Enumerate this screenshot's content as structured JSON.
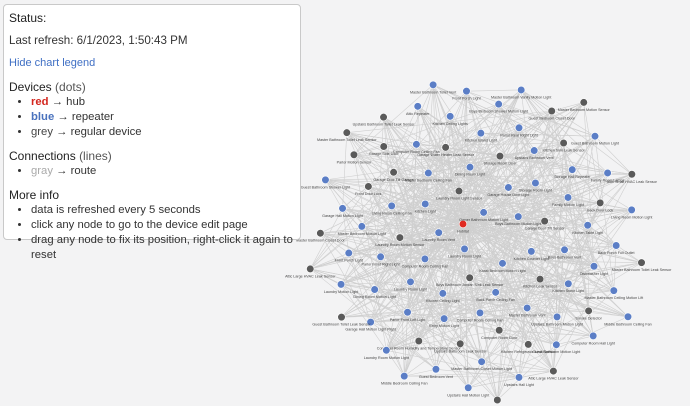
{
  "legend": {
    "status_label": "Status:",
    "last_refresh": "Last refresh: 6/1/2023, 1:50:43 PM",
    "toggle_label": "Hide chart legend",
    "devices": {
      "title": "Devices",
      "note": "(dots)",
      "items": [
        {
          "color_word": "red",
          "arrow": "→",
          "desc": "hub",
          "color": "#d4261e"
        },
        {
          "color_word": "blue",
          "arrow": "→",
          "desc": "repeater",
          "color": "#4a72bd"
        },
        {
          "color_word": "grey",
          "arrow": "→",
          "desc": "regular device",
          "color": "#444444"
        }
      ]
    },
    "connections": {
      "title": "Connections",
      "note": "(lines)",
      "items": [
        {
          "color_word": "gray",
          "arrow": "→",
          "desc": "route",
          "color": "#aaaaaa"
        }
      ]
    },
    "more_info": {
      "title": "More info",
      "items": [
        "data is refreshed every 5 seconds",
        "click any node to go to the device edit page",
        "drag any node to fix its position, right-click it again to reset"
      ]
    }
  },
  "colors": {
    "hub": "#e02b22",
    "repeater": "#5b7ec6",
    "regular": "#5a5a5a",
    "edge": "#cfcfcf"
  },
  "graph": {
    "nodes": [
      {
        "label": "Hubitat",
        "type": "hub"
      },
      {
        "label": "Laundry Room Light",
        "type": "repeater"
      },
      {
        "label": "Owner Bathroom Motion Light",
        "type": "repeater"
      },
      {
        "label": "Kasst Bedroom Motion Light",
        "type": "repeater"
      },
      {
        "label": "Laundry Room Vent",
        "type": "repeater"
      },
      {
        "label": "Boys Bathroom Motion Light",
        "type": "repeater"
      },
      {
        "label": "Boys Bathroom Jordan Sink Leak Sensor",
        "type": "regular"
      },
      {
        "label": "Laundry Room Light Sensor",
        "type": "regular"
      },
      {
        "label": "Kitchen Counter Light",
        "type": "repeater"
      },
      {
        "label": "Computer Room Ceiling Fan",
        "type": "repeater"
      },
      {
        "label": "Garage House Door Light",
        "type": "repeater"
      },
      {
        "label": "Back Porch Ceiling Fan",
        "type": "repeater"
      },
      {
        "label": "Kitchen Light",
        "type": "repeater"
      },
      {
        "label": "Garage Door Tilt Sensor",
        "type": "regular"
      },
      {
        "label": "Kitchen Ceiling Light",
        "type": "repeater"
      },
      {
        "label": "Dining Room Light",
        "type": "repeater"
      },
      {
        "label": "Kitchen Leak Sensor",
        "type": "regular"
      },
      {
        "label": "Laundry Room Motion Sensor",
        "type": "regular"
      },
      {
        "label": "Storage Room Light",
        "type": "repeater"
      },
      {
        "label": "Computer Room Ceiling Fan",
        "type": "repeater"
      },
      {
        "label": "Master Bedroom Ceiling Fan",
        "type": "repeater"
      },
      {
        "label": "Boys Bathroom Vent",
        "type": "repeater"
      },
      {
        "label": "Laundry Room Light",
        "type": "repeater"
      },
      {
        "label": "Storage Room Door",
        "type": "regular"
      },
      {
        "label": "Master Bathroom Vent",
        "type": "repeater"
      },
      {
        "label": "Living Room Ceiling Fan",
        "type": "repeater"
      },
      {
        "label": "Family Motion Light",
        "type": "repeater"
      },
      {
        "label": "Entry Motion Light",
        "type": "repeater"
      },
      {
        "label": "Garage Water Heater Leak Sensor",
        "type": "regular"
      },
      {
        "label": "Kitchen Stove Light",
        "type": "repeater"
      },
      {
        "label": "Parlor Front Right Light",
        "type": "repeater"
      },
      {
        "label": "Upstairs Bathroom Vent",
        "type": "repeater"
      },
      {
        "label": "Computer Room Door",
        "type": "regular"
      },
      {
        "label": "Garage Door Tilt Garage",
        "type": "regular"
      },
      {
        "label": "Kitchen Table Light",
        "type": "repeater"
      },
      {
        "label": "Parlor Front Left Light",
        "type": "repeater"
      },
      {
        "label": "Kitchen Island Light",
        "type": "repeater"
      },
      {
        "label": "Upstairs Bathroom Motion Light",
        "type": "repeater"
      },
      {
        "label": "Master Bedroom Motion Light",
        "type": "repeater"
      },
      {
        "label": "Storage Hall Repeater",
        "type": "repeater"
      },
      {
        "label": "Upstairs Bathroom Leak Sensor",
        "type": "regular"
      },
      {
        "label": "Computer Room Ceiling Fan",
        "type": "repeater"
      },
      {
        "label": "Dishwasher Light",
        "type": "repeater"
      },
      {
        "label": "Dining Room Motion Light",
        "type": "repeater"
      },
      {
        "label": "Parlor Rear Right Light",
        "type": "repeater"
      },
      {
        "label": "Kitchen Refrigerator Leak Sensor",
        "type": "regular"
      },
      {
        "label": "Front Door Lock",
        "type": "regular"
      },
      {
        "label": "Back Door Lock",
        "type": "regular"
      },
      {
        "label": "Computer Room Humidity and Temperature Sensor",
        "type": "regular"
      },
      {
        "label": "Kitchen Ceiling Lights",
        "type": "repeater"
      },
      {
        "label": "Smoke Detector",
        "type": "regular"
      },
      {
        "label": "Front Porch Light",
        "type": "repeater"
      },
      {
        "label": "Kitchen Sink Leak Sensor",
        "type": "regular"
      },
      {
        "label": "Master Bathroom Closet Motion Light",
        "type": "repeater"
      },
      {
        "label": "Garage Side Door",
        "type": "regular"
      },
      {
        "label": "Back Porch Full Outlet",
        "type": "repeater"
      },
      {
        "label": "Garage Hall Motion Light Right",
        "type": "repeater"
      },
      {
        "label": "Boys Bedroom Shower Motion Light",
        "type": "repeater"
      },
      {
        "label": "Guest Bathroom Motion Light",
        "type": "repeater"
      },
      {
        "label": "Garage Hall Motion Light",
        "type": "repeater"
      },
      {
        "label": "Family Room Lamps",
        "type": "repeater"
      },
      {
        "label": "Guest Bedroom Vent",
        "type": "repeater"
      },
      {
        "label": "Attic Repeater",
        "type": "repeater"
      },
      {
        "label": "Master Bathroom Ceiling Motion Lift",
        "type": "repeater"
      },
      {
        "label": "Laundry Motion Light",
        "type": "repeater"
      },
      {
        "label": "Guest Bedroom Closet Door",
        "type": "regular"
      },
      {
        "label": "Upstairs Hall Light",
        "type": "repeater"
      },
      {
        "label": "Parlor Motion Sensor",
        "type": "regular"
      },
      {
        "label": "Living Room Motion Light",
        "type": "repeater"
      },
      {
        "label": "Laundry Room Motion Light",
        "type": "repeater"
      },
      {
        "label": "Front Porch Light",
        "type": "repeater"
      },
      {
        "label": "Computer Room Hall Light",
        "type": "repeater"
      },
      {
        "label": "Master Bathroom Closet Door",
        "type": "regular"
      },
      {
        "label": "Guest Bathroom Motion Light",
        "type": "repeater"
      },
      {
        "label": "Upstairs Hall Motion Light",
        "type": "repeater"
      },
      {
        "label": "Upstairs Bathroom Toilet Leak Sensor",
        "type": "regular"
      },
      {
        "label": "Master Bathroom Toilet Leak Sensor",
        "type": "regular"
      },
      {
        "label": "Guest Bathroom Toilet Leak Sensor",
        "type": "regular"
      },
      {
        "label": "Master Bathroom Vanity Motion Light",
        "type": "repeater"
      },
      {
        "label": "Attic Large HVAC Leak Sensor",
        "type": "regular"
      },
      {
        "label": "Guest Bathroom Shower Light",
        "type": "repeater"
      },
      {
        "label": "Attic Small HVAC Leak Sensor",
        "type": "regular"
      },
      {
        "label": "Middle Bedroom Ceiling Fan",
        "type": "repeater"
      },
      {
        "label": "Master Bathroom Toilet Vent",
        "type": "repeater"
      },
      {
        "label": "Middle Bathroom Ceiling Fan",
        "type": "repeater"
      },
      {
        "label": "Attic Large HVAC Leak Sensor",
        "type": "regular"
      },
      {
        "label": "Master Bedroom Motion Sensor",
        "type": "regular"
      },
      {
        "label": "Master Bathroom Sink Leak Sensor",
        "type": "regular"
      },
      {
        "label": "Master Bathroom Toilet Leak Sensor",
        "type": "regular"
      }
    ]
  }
}
